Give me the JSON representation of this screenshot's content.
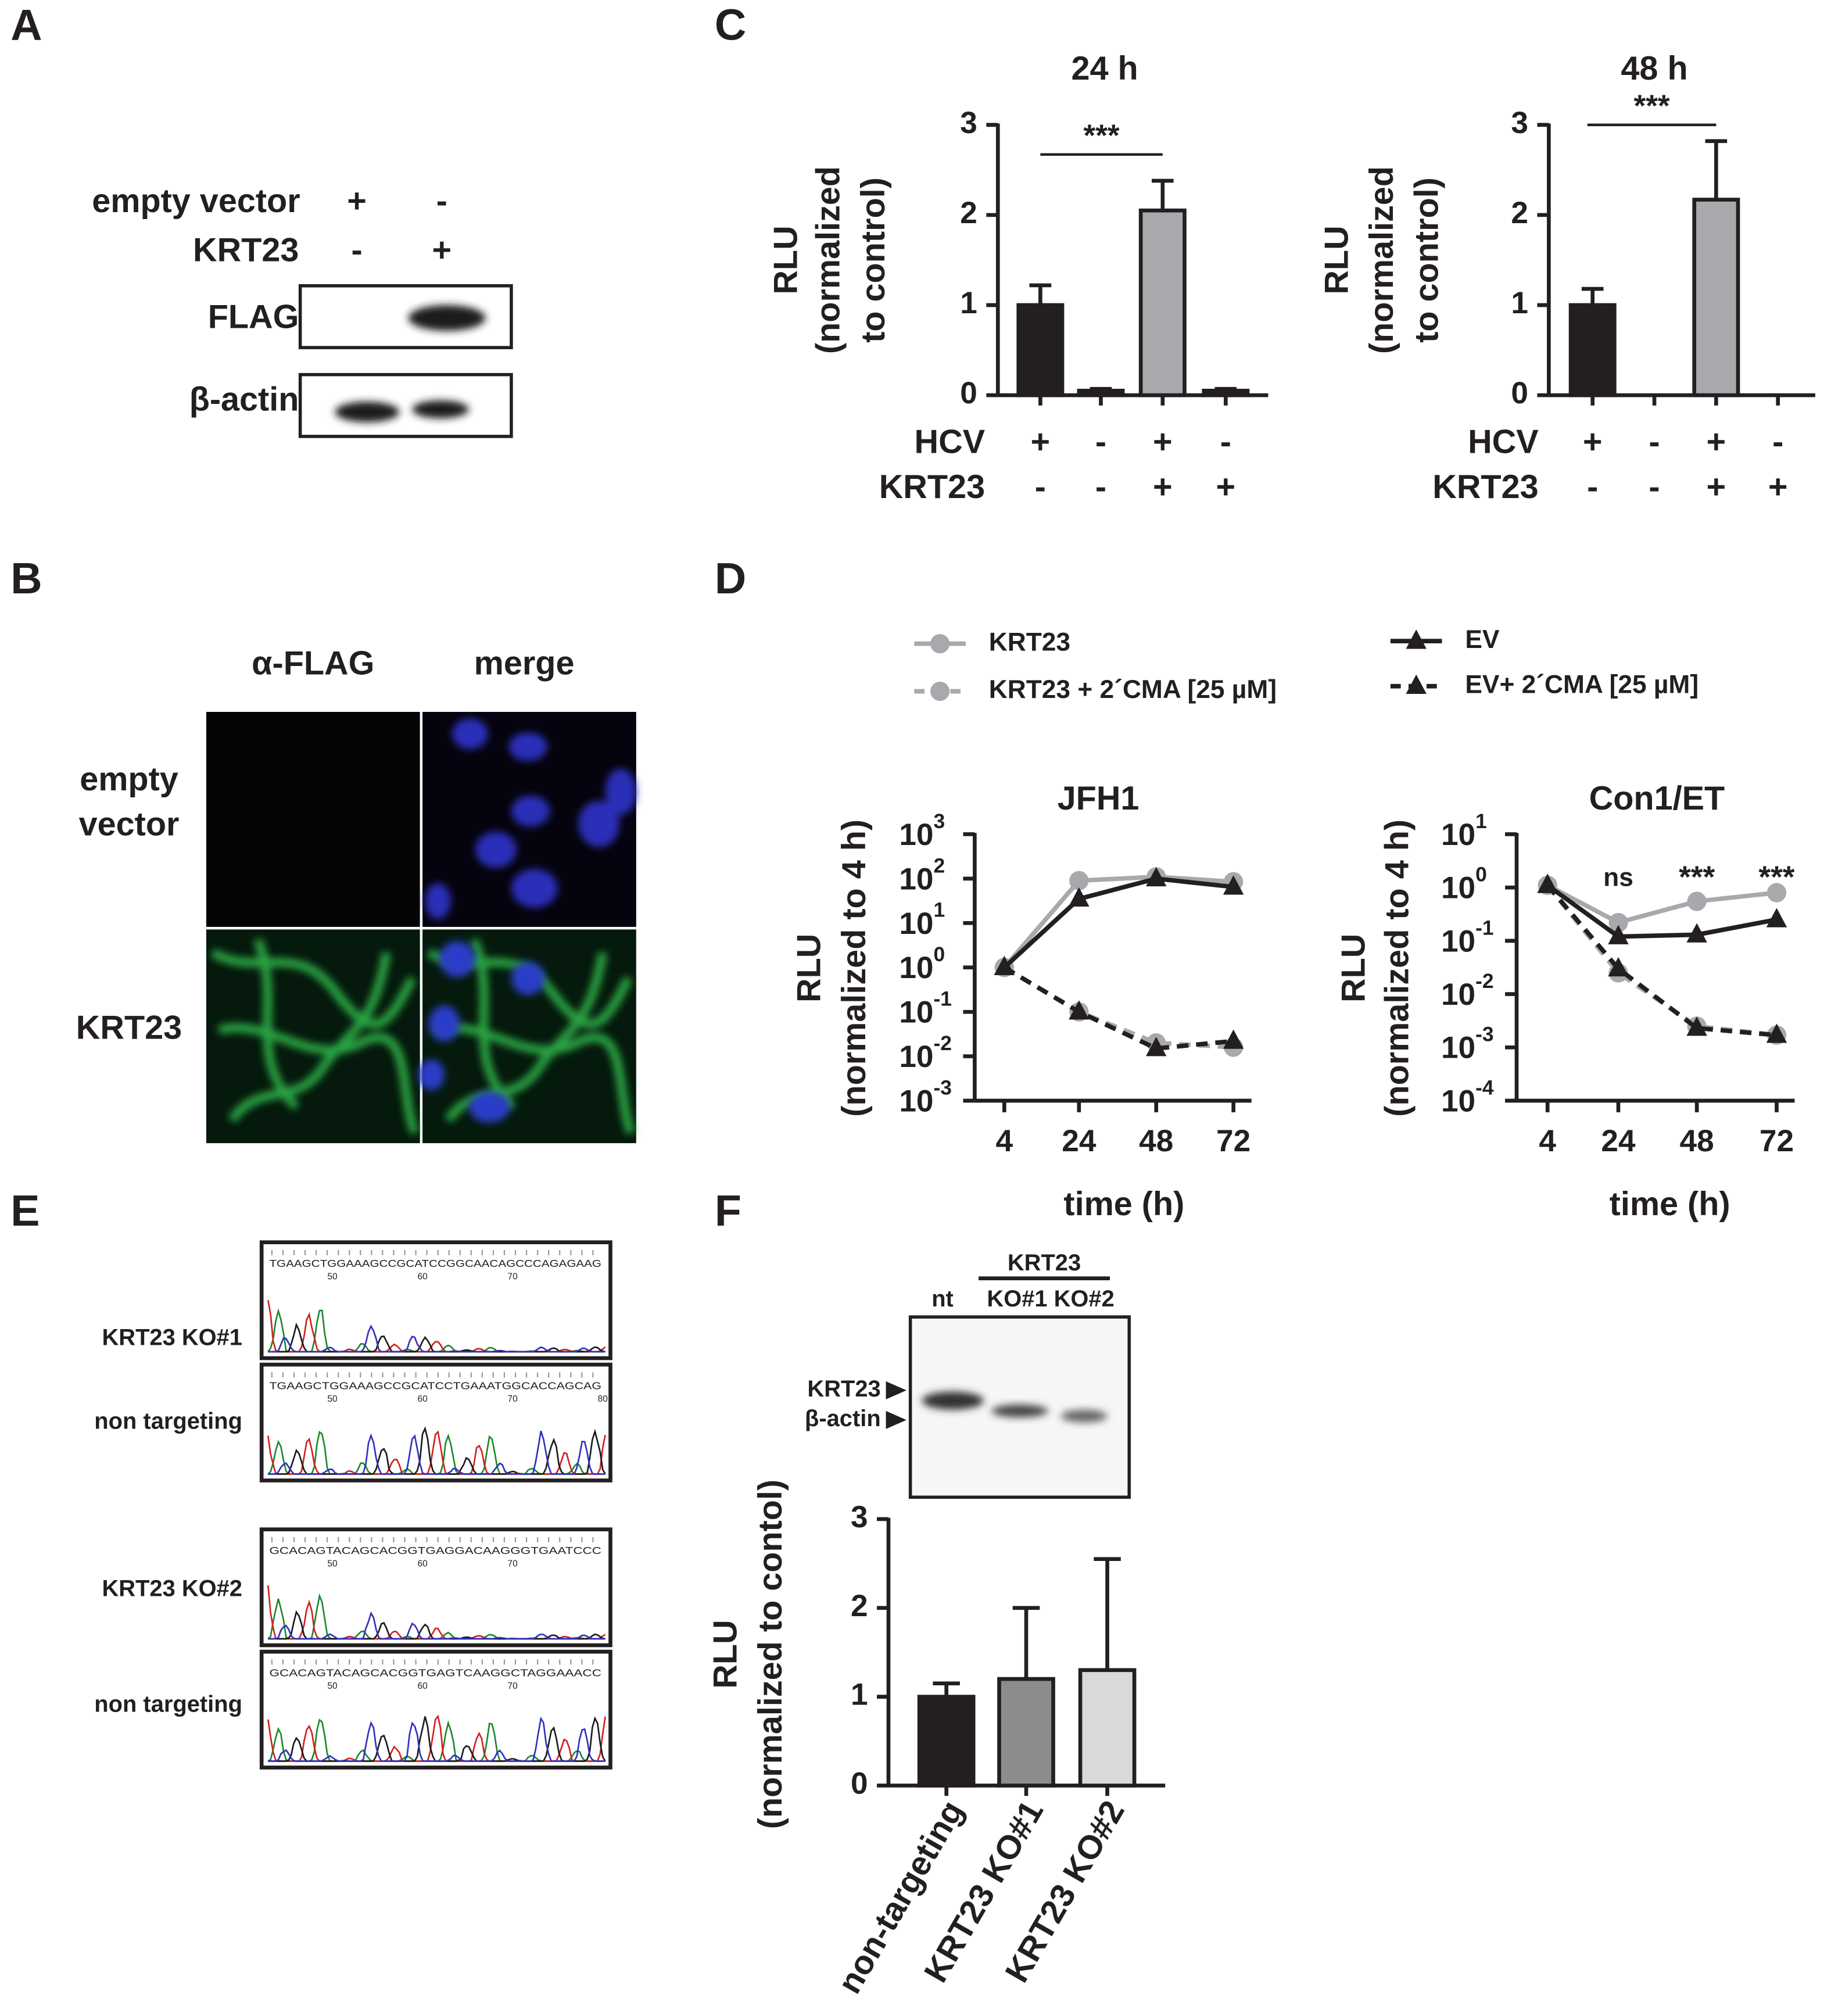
{
  "figure": {
    "panel_labels": [
      "A",
      "B",
      "C",
      "D",
      "E",
      "F"
    ],
    "blot_a": {
      "rows": [
        {
          "label": "empty vector",
          "lanes": [
            "+",
            "-"
          ]
        },
        {
          "label": "KRT23",
          "lanes": [
            "-",
            "+"
          ]
        }
      ],
      "bands": [
        "FLAG",
        "β-actin"
      ]
    },
    "microscopy": {
      "columns": [
        "α-FLAG",
        "merge"
      ],
      "rows": [
        [
          "empty",
          "vector"
        ],
        [
          "KRT23"
        ]
      ]
    },
    "sequencing": [
      {
        "label": "KRT23 KO#1",
        "sequence": "TGAAGCTGGAAAGCCGCATCCGGCAACAGCCCAGAGAAG",
        "positions": [
          "50",
          "60",
          "70"
        ]
      },
      {
        "label": "non targeting",
        "sequence": "TGAAGCTGGAAAGCCGCATCCTGAAATGGCACCAGCAG",
        "positions": [
          "50",
          "60",
          "70",
          "80"
        ]
      },
      {
        "label": "KRT23 KO#2",
        "sequence": "GCACAGTACAGCACGGTGAGGACAAGGGTGAATCCC",
        "positions": [
          "50",
          "60",
          "70"
        ]
      },
      {
        "label": "non targeting",
        "sequence": "GCACAGTACAGCACGGTGAGTCAAGGCTAGGAAACC",
        "positions": [
          "50",
          "60",
          "70"
        ]
      }
    ],
    "blot_f": {
      "group": "KRT23",
      "lanes": [
        "nt",
        "KO#1",
        "KO#2"
      ],
      "bands": [
        "KRT23",
        "β-actin"
      ]
    }
  },
  "chart_data": [
    {
      "type": "bar",
      "title": "24 h",
      "ylabel": [
        "RLU",
        "(normalized",
        "to control)"
      ],
      "conditions": [
        {
          "name": "HCV",
          "signs": [
            "+",
            "-",
            "+",
            "-"
          ]
        },
        {
          "name": "KRT23",
          "signs": [
            "-",
            "-",
            "+",
            "+"
          ]
        }
      ],
      "values": [
        1.0,
        0.05,
        2.05,
        0.05
      ],
      "errors": [
        0.22,
        0.02,
        0.33,
        0.02
      ],
      "colors": [
        "#231f20",
        "#231f20",
        "#a7a9ac",
        "#231f20"
      ],
      "ylim": [
        0,
        3
      ],
      "yticks": [
        0,
        1,
        2,
        3
      ],
      "annotations": [
        "***"
      ]
    },
    {
      "type": "bar",
      "title": "48 h",
      "ylabel": [
        "RLU",
        "(normalized",
        "to control)"
      ],
      "conditions": [
        {
          "name": "HCV",
          "signs": [
            "+",
            "-",
            "+",
            "-"
          ]
        },
        {
          "name": "KRT23",
          "signs": [
            "-",
            "-",
            "+",
            "+"
          ]
        }
      ],
      "values": [
        1.0,
        0,
        2.17,
        0
      ],
      "errors": [
        0.18,
        null,
        0.65,
        null
      ],
      "colors": [
        "#231f20",
        "#231f20",
        "#a7a9ac",
        "#231f20"
      ],
      "ylim": [
        0,
        3
      ],
      "yticks": [
        0,
        1,
        2,
        3
      ],
      "annotations": [
        "***"
      ]
    },
    {
      "type": "line",
      "title": "JFH1",
      "ylabel": [
        "RLU",
        "(normalized to 4 h)"
      ],
      "xlabel": "time (h)",
      "categories": [
        "4",
        "24",
        "48",
        "72"
      ],
      "log_y": true,
      "ylim": [
        0.001,
        1000
      ],
      "yticks": [
        {
          "value": 0.001,
          "label": "10",
          "exponent": "-3"
        },
        {
          "value": 0.01,
          "label": "10",
          "exponent": "-2"
        },
        {
          "value": 0.1,
          "label": "10",
          "exponent": "-1"
        },
        {
          "value": 1,
          "label": "10",
          "exponent": "0"
        },
        {
          "value": 10,
          "label": "10",
          "exponent": "1"
        },
        {
          "value": 100,
          "label": "10",
          "exponent": "2"
        },
        {
          "value": 1000,
          "label": "10",
          "exponent": "3"
        }
      ],
      "series": [
        {
          "name": "KRT23",
          "color": "#a7a9ac",
          "marker": "circle",
          "dashed": false,
          "values": [
            1,
            90,
            110,
            85
          ]
        },
        {
          "name": "KRT23 + 2´CMA [25 µM]",
          "color": "#a7a9ac",
          "marker": "circle",
          "dashed": true,
          "values": [
            1,
            0.1,
            0.02,
            0.016
          ]
        },
        {
          "name": "EV",
          "color": "#231f20",
          "marker": "triangle",
          "dashed": false,
          "values": [
            1,
            35,
            100,
            65
          ]
        },
        {
          "name": "EV+ 2´CMA [25 µM]",
          "color": "#231f20",
          "marker": "triangle",
          "dashed": true,
          "values": [
            1,
            0.1,
            0.015,
            0.022
          ]
        }
      ]
    },
    {
      "type": "line",
      "title": "Con1/ET",
      "ylabel": [
        "RLU",
        "(normalized to 4 h)"
      ],
      "xlabel": "time (h)",
      "categories": [
        "4",
        "24",
        "48",
        "72"
      ],
      "log_y": true,
      "ylim": [
        0.0001,
        10
      ],
      "yticks": [
        {
          "value": 0.0001,
          "label": "10",
          "exponent": "-4"
        },
        {
          "value": 0.001,
          "label": "10",
          "exponent": "-3"
        },
        {
          "value": 0.01,
          "label": "10",
          "exponent": "-2"
        },
        {
          "value": 0.1,
          "label": "10",
          "exponent": "-1"
        },
        {
          "value": 1,
          "label": "10",
          "exponent": "0"
        },
        {
          "value": 10,
          "label": "10",
          "exponent": "1"
        }
      ],
      "annotations": [
        null,
        "ns",
        "***",
        "***"
      ],
      "series": [
        {
          "color": "#a7a9ac",
          "marker": "circle",
          "dashed": false,
          "values": [
            1.1,
            0.22,
            0.55,
            0.8
          ]
        },
        {
          "color": "#a7a9ac",
          "marker": "circle",
          "dashed": true,
          "values": [
            1.1,
            0.025,
            0.0025,
            0.0017
          ]
        },
        {
          "color": "#231f20",
          "marker": "triangle",
          "dashed": false,
          "values": [
            1.1,
            0.12,
            0.13,
            0.25
          ]
        },
        {
          "color": "#231f20",
          "marker": "triangle",
          "dashed": true,
          "values": [
            1.1,
            0.03,
            0.0023,
            0.0017
          ]
        }
      ]
    },
    {
      "type": "bar",
      "ylabel": [
        "RLU",
        "(normalized to contol)"
      ],
      "categories": [
        "non-targeting",
        "KRT23 KO#1",
        "KRT23 KO#2"
      ],
      "values": [
        1.0,
        1.2,
        1.3
      ],
      "errors": [
        0.15,
        0.8,
        1.25
      ],
      "colors": [
        "#231f20",
        "#8a8c8e",
        "#d9d9d9"
      ],
      "ylim": [
        0,
        3
      ],
      "yticks": [
        0,
        1,
        2,
        3
      ]
    }
  ]
}
